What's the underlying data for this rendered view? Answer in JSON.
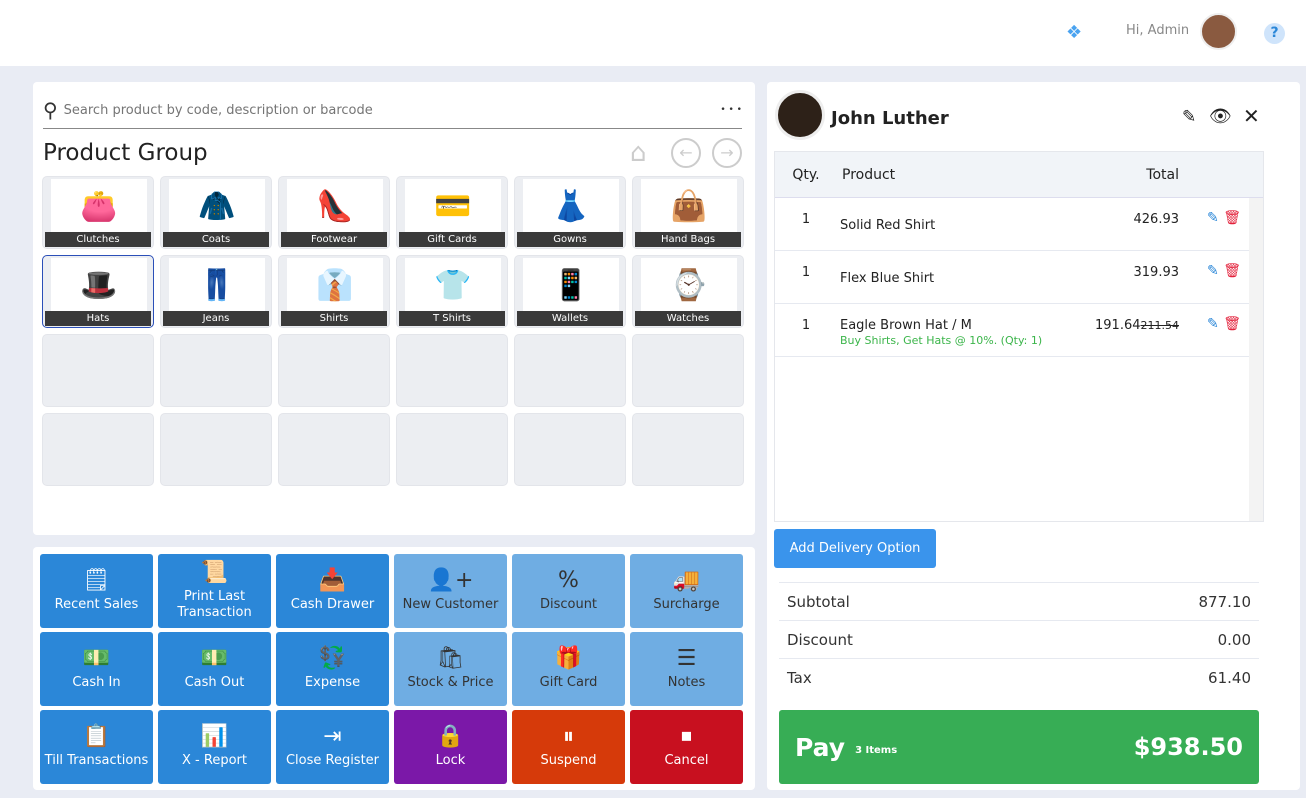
{
  "header": {
    "greeting": "Hi, Admin",
    "help": "?"
  },
  "search": {
    "placeholder": "Search product by code, description or barcode",
    "more": "• • •"
  },
  "product_group": {
    "title": "Product Group",
    "tiles": [
      {
        "label": "Clutches",
        "icon": "👛"
      },
      {
        "label": "Coats",
        "icon": "🧥"
      },
      {
        "label": "Footwear",
        "icon": "👠"
      },
      {
        "label": "Gift Cards",
        "icon": "💳"
      },
      {
        "label": "Gowns",
        "icon": "👗"
      },
      {
        "label": "Hand Bags",
        "icon": "👜"
      },
      {
        "label": "Hats",
        "icon": "🎩"
      },
      {
        "label": "Jeans",
        "icon": "👖"
      },
      {
        "label": "Shirts",
        "icon": "👔"
      },
      {
        "label": "T Shirts",
        "icon": "👕"
      },
      {
        "label": "Wallets",
        "icon": "📱"
      },
      {
        "label": "Watches",
        "icon": "⌚"
      }
    ]
  },
  "actions": [
    {
      "label": "Recent Sales",
      "icon": "🗒",
      "style": "dk"
    },
    {
      "label": "Print Last Transaction",
      "icon": "📜",
      "style": "dk"
    },
    {
      "label": "Cash Drawer",
      "icon": "📥",
      "style": "dk"
    },
    {
      "label": "New Customer",
      "icon": "👤+",
      "style": "lt"
    },
    {
      "label": "Discount",
      "icon": "%",
      "style": "lt"
    },
    {
      "label": "Surcharge",
      "icon": "🚚",
      "style": "lt"
    },
    {
      "label": "Cash In",
      "icon": "💵",
      "style": "dk"
    },
    {
      "label": "Cash Out",
      "icon": "💵",
      "style": "dk"
    },
    {
      "label": "Expense",
      "icon": "💱",
      "style": "dk"
    },
    {
      "label": "Stock & Price",
      "icon": "🛍",
      "style": "lt"
    },
    {
      "label": "Gift Card",
      "icon": "🎁",
      "style": "lt"
    },
    {
      "label": "Notes",
      "icon": "☰",
      "style": "lt"
    },
    {
      "label": "Till Transactions",
      "icon": "📋",
      "style": "dk"
    },
    {
      "label": "X - Report",
      "icon": "📊",
      "style": "dk"
    },
    {
      "label": "Close Register",
      "icon": "⇥",
      "style": "dk"
    },
    {
      "label": "Lock",
      "icon": "🔒",
      "style": "lock"
    },
    {
      "label": "Suspend",
      "icon": "⏸",
      "style": "susp"
    },
    {
      "label": "Cancel",
      "icon": "⏹",
      "style": "canc"
    }
  ],
  "colors": {
    "lock": "#7b18a8",
    "susp": "#d63a0a",
    "canc": "#c8101f",
    "pay": "#37ad55",
    "accent": "#2b87d8"
  },
  "cart": {
    "customer": "John Luther",
    "headers": {
      "qty": "Qty.",
      "product": "Product",
      "total": "Total"
    },
    "items": [
      {
        "qty": "1",
        "name": "Solid Red Shirt",
        "total": "426.93",
        "old": "",
        "promo": ""
      },
      {
        "qty": "1",
        "name": "Flex Blue Shirt",
        "total": "319.93",
        "old": "",
        "promo": ""
      },
      {
        "qty": "1",
        "name": "Eagle Brown Hat / M",
        "total": "191.64",
        "old": "211.54",
        "promo": "Buy Shirts, Get Hats @ 10%.  (Qty: 1)"
      }
    ],
    "delivery": "Add Delivery Option",
    "subtotal_label": "Subtotal",
    "subtotal": "877.10",
    "discount_label": "Discount",
    "discount": "0.00",
    "tax_label": "Tax",
    "tax": "61.40",
    "pay_label": "Pay",
    "items_count": "3 Items",
    "pay_total": "$938.50"
  }
}
